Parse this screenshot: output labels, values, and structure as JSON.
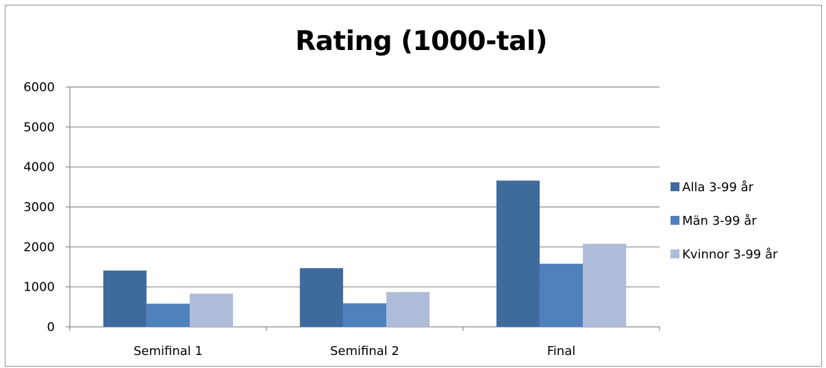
{
  "chart_data": {
    "type": "bar",
    "title": "Rating (1000-tal)",
    "xlabel": "",
    "ylabel": "",
    "categories": [
      "Semifinal 1",
      "Semifinal 2",
      "Final"
    ],
    "series": [
      {
        "name": "Alla 3-99 år",
        "color": "#3f6a9c",
        "values": [
          1410,
          1470,
          3660
        ]
      },
      {
        "name": "Män 3-99 år",
        "color": "#4f81bd",
        "values": [
          580,
          590,
          1580
        ]
      },
      {
        "name": "Kvinnor 3-99 år",
        "color": "#aebbd9",
        "values": [
          830,
          870,
          2080
        ]
      }
    ],
    "ylim": [
      0,
      6000
    ],
    "yticks": [
      0,
      1000,
      2000,
      3000,
      4000,
      5000,
      6000
    ],
    "grid": true,
    "legend_position": "right"
  }
}
